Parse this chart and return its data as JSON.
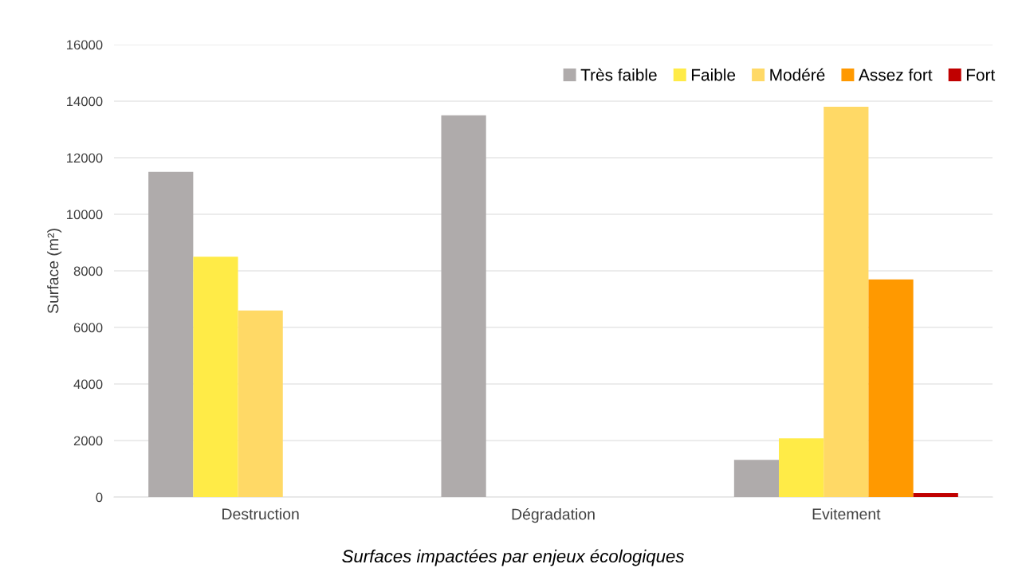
{
  "chart_data": {
    "type": "bar",
    "ylabel": "Surface (m²)",
    "categories": [
      "Destruction",
      "Dégradation",
      "Evitement"
    ],
    "series": [
      {
        "name": "Très faible",
        "color": "#afabab",
        "values": [
          11500,
          13500,
          1320
        ]
      },
      {
        "name": "Faible",
        "color": "#ffeb47",
        "values": [
          8500,
          null,
          2080
        ]
      },
      {
        "name": "Modéré",
        "color": "#ffd966",
        "values": [
          6600,
          null,
          13800
        ]
      },
      {
        "name": "Assez fort",
        "color": "#ff9900",
        "values": [
          null,
          null,
          7700
        ]
      },
      {
        "name": "Fort",
        "color": "#c00000",
        "values": [
          null,
          null,
          140
        ]
      }
    ],
    "ylim": [
      0,
      16000
    ],
    "yticks": [
      0,
      2000,
      4000,
      6000,
      8000,
      10000,
      12000,
      14000,
      16000
    ],
    "grid": "y",
    "legend": "top right",
    "annotations": [
      "Surfaces impactées par enjeux écologiques"
    ]
  }
}
